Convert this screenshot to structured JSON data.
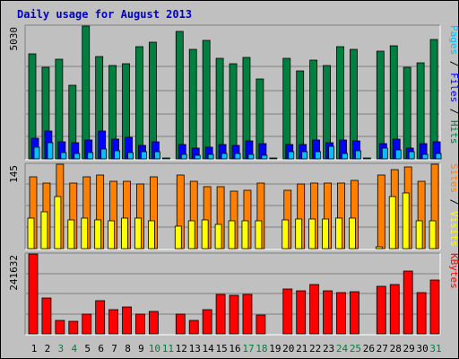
{
  "title": "Daily usage for August 2013",
  "colors": {
    "pages": "#00c0ff",
    "files": "#0000ff",
    "hits": "#008040",
    "sites": "#ffff00",
    "visits": "#ff8000",
    "kbytes": "#ff0000",
    "weekday_label": "#000000",
    "weekend_label": "#008040",
    "bg": "#c0c0c0",
    "grid": "#808080"
  },
  "chart_data": [
    {
      "type": "bar",
      "title": "",
      "ylabel_parts": [
        "Pages",
        "/",
        "Files",
        "/",
        "Hits"
      ],
      "ymax_label": "5030",
      "ylim": [
        0,
        5030
      ],
      "categories": [
        "1",
        "2",
        "3",
        "4",
        "5",
        "6",
        "7",
        "8",
        "9",
        "10",
        "11",
        "12",
        "13",
        "14",
        "15",
        "16",
        "17",
        "18",
        "19",
        "20",
        "21",
        "22",
        "23",
        "24",
        "25",
        "26",
        "27",
        "28",
        "29",
        "30",
        "31"
      ],
      "weekend_days": [
        "3",
        "4",
        "10",
        "11",
        "17",
        "18",
        "24",
        "25",
        "31"
      ],
      "series": [
        {
          "name": "Hits",
          "values": [
            3980,
            3460,
            3760,
            2800,
            5030,
            3890,
            3540,
            3590,
            4250,
            4420,
            0,
            4810,
            4150,
            4490,
            3800,
            3590,
            3850,
            3030,
            0,
            3800,
            3330,
            3730,
            3520,
            4250,
            4150,
            0,
            4070,
            4290,
            3450,
            3650,
            4520
          ]
        },
        {
          "name": "Files",
          "values": [
            790,
            1040,
            650,
            620,
            700,
            1040,
            750,
            810,
            520,
            650,
            0,
            550,
            400,
            440,
            540,
            510,
            690,
            590,
            0,
            540,
            540,
            700,
            620,
            700,
            690,
            0,
            580,
            750,
            400,
            590,
            650
          ]
        },
        {
          "name": "Pages",
          "values": [
            430,
            620,
            240,
            210,
            250,
            370,
            290,
            230,
            280,
            270,
            0,
            170,
            150,
            170,
            220,
            200,
            180,
            150,
            0,
            260,
            260,
            280,
            480,
            210,
            300,
            0,
            400,
            330,
            270,
            170,
            200
          ]
        }
      ]
    },
    {
      "type": "bar",
      "title": "",
      "ylabel_parts": [
        "Sites",
        "/",
        "Visits"
      ],
      "ymax_label": "145",
      "ylim": [
        0,
        145
      ],
      "categories": [
        "1",
        "2",
        "3",
        "4",
        "5",
        "6",
        "7",
        "8",
        "9",
        "10",
        "11",
        "12",
        "13",
        "14",
        "15",
        "16",
        "17",
        "18",
        "19",
        "20",
        "21",
        "22",
        "23",
        "24",
        "25",
        "26",
        "27",
        "28",
        "29",
        "30",
        "31"
      ],
      "series": [
        {
          "name": "Visits",
          "values": [
            124,
            112,
            145,
            113,
            124,
            127,
            116,
            116,
            111,
            124,
            0,
            127,
            115,
            106,
            106,
            98,
            101,
            112,
            0,
            100,
            111,
            112,
            112,
            113,
            117,
            0,
            126,
            136,
            140,
            116,
            145
          ]
        },
        {
          "name": "Sites",
          "values": [
            53,
            63,
            89,
            50,
            53,
            50,
            48,
            53,
            53,
            48,
            0,
            39,
            48,
            49,
            41,
            48,
            48,
            48,
            0,
            49,
            51,
            51,
            51,
            52,
            52,
            0,
            2,
            89,
            96,
            48,
            48
          ]
        }
      ]
    },
    {
      "type": "bar",
      "title": "",
      "ylabel_parts": [
        "KBytes"
      ],
      "ymax_label": "241632",
      "ylim": [
        0,
        241632
      ],
      "categories": [
        "1",
        "2",
        "3",
        "4",
        "5",
        "6",
        "7",
        "8",
        "9",
        "10",
        "11",
        "12",
        "13",
        "14",
        "15",
        "16",
        "17",
        "18",
        "19",
        "20",
        "21",
        "22",
        "23",
        "24",
        "25",
        "26",
        "27",
        "28",
        "29",
        "30",
        "31"
      ],
      "series": [
        {
          "name": "KBytes",
          "values": [
            241632,
            108000,
            40500,
            38000,
            61000,
            101000,
            74000,
            80500,
            60000,
            67500,
            0,
            60000,
            40000,
            74000,
            120000,
            118000,
            120000,
            58000,
            0,
            136000,
            130000,
            148000,
            130000,
            126000,
            128000,
            0,
            145000,
            148000,
            191000,
            126000,
            164000
          ]
        }
      ]
    }
  ]
}
